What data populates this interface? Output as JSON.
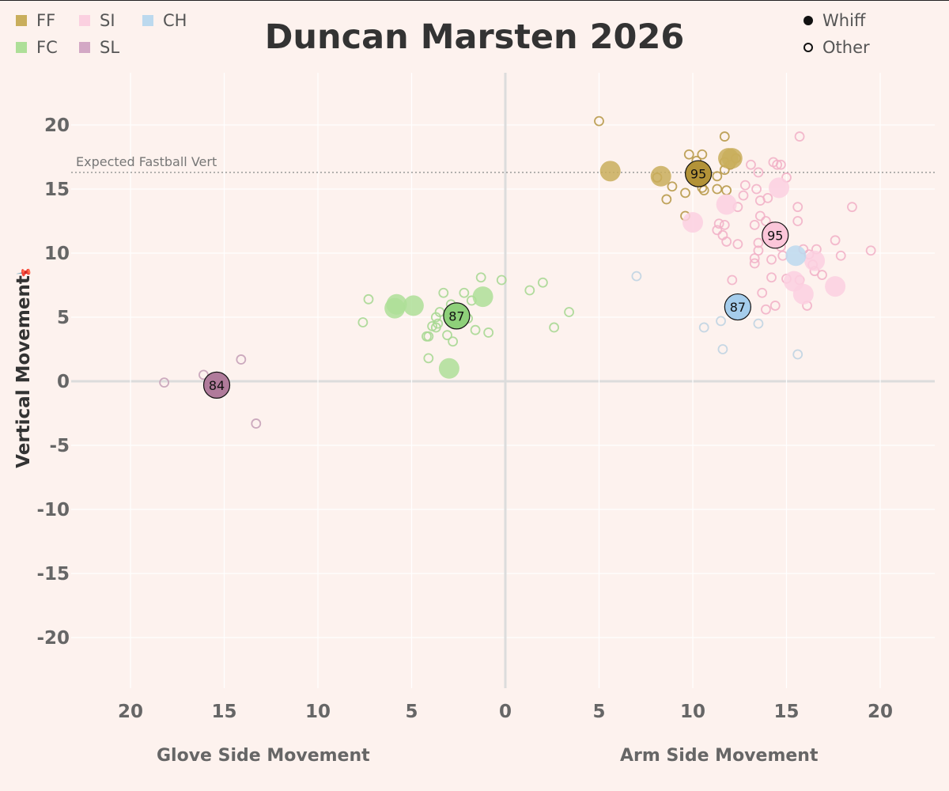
{
  "title": "Duncan Marsten 2026",
  "legend": {
    "pitch_types": [
      {
        "label": "FF",
        "color": "#c9ae5c"
      },
      {
        "label": "SI",
        "color": "#fbd0e0"
      },
      {
        "label": "CH",
        "color": "#bcd9ee"
      },
      {
        "label": "FC",
        "color": "#aedf98"
      },
      {
        "label": "SL",
        "color": "#d3a8c5"
      }
    ],
    "outcomes": [
      {
        "label": "Whiff",
        "style": "filled"
      },
      {
        "label": "Other",
        "style": "hollow"
      }
    ]
  },
  "axes": {
    "ylabel": "Vertical Movement",
    "xlabel_left": "Glove Side Movement",
    "xlabel_right": "Arm Side Movement",
    "reference_line_label": "Expected Fastball Vert"
  },
  "chart_data": {
    "type": "scatter",
    "x_ticks": [
      "20",
      "15",
      "10",
      "5",
      "0",
      "5",
      "10",
      "15",
      "20"
    ],
    "y_ticks": [
      20,
      15,
      10,
      5,
      0,
      -5,
      -10,
      -15,
      -20
    ],
    "xlim": [
      -23,
      23
    ],
    "ylim": [
      -24,
      24
    ],
    "grid": true,
    "x_note": "negative = glove side, positive = arm side (labels are absolute values)",
    "reference_line_y": 16.3,
    "legend_position": "top",
    "series": [
      {
        "name": "FF",
        "color": "#c9ae5c",
        "avg_color": "#b39338",
        "stroke": "#b89a4a",
        "average": {
          "x": 10.3,
          "y": 16.2,
          "label": "95"
        },
        "whiff": [
          [
            5.6,
            16.4
          ],
          [
            8.3,
            16.0
          ],
          [
            10.4,
            16.4
          ],
          [
            11.9,
            17.4
          ],
          [
            12.1,
            17.4
          ]
        ],
        "other": [
          [
            5.0,
            20.3
          ],
          [
            8.1,
            15.9
          ],
          [
            8.6,
            14.2
          ],
          [
            8.9,
            15.2
          ],
          [
            9.6,
            14.7
          ],
          [
            9.8,
            17.7
          ],
          [
            9.6,
            12.9
          ],
          [
            10.2,
            17.2
          ],
          [
            10.5,
            17.7
          ],
          [
            10.5,
            15.1
          ],
          [
            10.6,
            14.9
          ],
          [
            11.3,
            16.0
          ],
          [
            11.3,
            15.0
          ],
          [
            11.7,
            19.1
          ],
          [
            11.7,
            17.1
          ],
          [
            11.7,
            16.5
          ],
          [
            11.8,
            14.9
          ],
          [
            12.0,
            16.9
          ],
          [
            12.3,
            17.4
          ]
        ]
      },
      {
        "name": "SI",
        "color": "#fbd0e0",
        "avg_color": "#fbc6d9",
        "stroke": "#f2b3c8",
        "average": {
          "x": 14.4,
          "y": 11.4,
          "label": "95"
        },
        "whiff": [
          [
            10.0,
            12.4
          ],
          [
            11.8,
            13.8
          ],
          [
            14.6,
            15.1
          ],
          [
            15.4,
            7.8
          ],
          [
            15.9,
            6.8
          ],
          [
            16.5,
            9.4
          ],
          [
            17.6,
            7.4
          ]
        ],
        "other": [
          [
            11.3,
            11.8
          ],
          [
            11.4,
            12.3
          ],
          [
            11.6,
            11.4
          ],
          [
            11.7,
            12.2
          ],
          [
            11.8,
            10.9
          ],
          [
            12.1,
            7.9
          ],
          [
            12.4,
            10.7
          ],
          [
            12.4,
            13.6
          ],
          [
            12.7,
            14.5
          ],
          [
            12.8,
            15.3
          ],
          [
            13.1,
            16.9
          ],
          [
            13.3,
            12.2
          ],
          [
            13.3,
            9.2
          ],
          [
            13.3,
            9.6
          ],
          [
            13.4,
            15.0
          ],
          [
            13.5,
            16.3
          ],
          [
            13.5,
            10.2
          ],
          [
            13.5,
            10.8
          ],
          [
            13.6,
            14.1
          ],
          [
            13.6,
            12.9
          ],
          [
            13.7,
            6.9
          ],
          [
            13.9,
            12.5
          ],
          [
            13.9,
            5.6
          ],
          [
            14.0,
            14.3
          ],
          [
            14.2,
            8.1
          ],
          [
            14.2,
            9.5
          ],
          [
            14.2,
            12.1
          ],
          [
            14.3,
            17.1
          ],
          [
            14.4,
            5.9
          ],
          [
            14.5,
            16.9
          ],
          [
            14.7,
            16.9
          ],
          [
            14.7,
            10.5
          ],
          [
            14.8,
            9.8
          ],
          [
            15.0,
            15.9
          ],
          [
            15.0,
            8.0
          ],
          [
            15.7,
            19.1
          ],
          [
            15.6,
            13.6
          ],
          [
            15.6,
            12.5
          ],
          [
            15.7,
            7.9
          ],
          [
            15.9,
            10.3
          ],
          [
            16.1,
            5.9
          ],
          [
            16.2,
            9.9
          ],
          [
            16.4,
            9.1
          ],
          [
            16.5,
            8.6
          ],
          [
            16.6,
            10.3
          ],
          [
            16.9,
            8.3
          ],
          [
            17.6,
            11.0
          ],
          [
            17.9,
            9.8
          ],
          [
            18.5,
            13.6
          ],
          [
            19.5,
            10.2
          ]
        ]
      },
      {
        "name": "CH",
        "color": "#bcd9ee",
        "avg_color": "#a5cdec",
        "stroke": "#c0d4e2",
        "average": {
          "x": 12.4,
          "y": 5.8,
          "label": "87"
        },
        "whiff": [
          [
            15.5,
            9.8
          ]
        ],
        "other": [
          [
            7.0,
            8.2
          ],
          [
            10.6,
            4.2
          ],
          [
            11.5,
            4.7
          ],
          [
            11.6,
            2.5
          ],
          [
            12.6,
            6.4
          ],
          [
            13.5,
            4.5
          ],
          [
            15.6,
            2.1
          ]
        ]
      },
      {
        "name": "FC",
        "color": "#aedf98",
        "avg_color": "#8ed07a",
        "stroke": "#a9d894",
        "average": {
          "x": -2.6,
          "y": 5.1,
          "label": "87"
        },
        "whiff": [
          [
            -5.9,
            5.7
          ],
          [
            -5.8,
            6.0
          ],
          [
            -4.9,
            5.9
          ],
          [
            -3.0,
            1.0
          ],
          [
            -1.2,
            6.6
          ]
        ],
        "other": [
          [
            -7.6,
            4.6
          ],
          [
            -7.3,
            6.4
          ],
          [
            -4.2,
            3.5
          ],
          [
            -4.1,
            3.5
          ],
          [
            -4.1,
            1.8
          ],
          [
            -3.9,
            4.3
          ],
          [
            -3.7,
            4.2
          ],
          [
            -3.7,
            5.0
          ],
          [
            -3.6,
            4.5
          ],
          [
            -3.5,
            5.4
          ],
          [
            -3.3,
            6.9
          ],
          [
            -3.1,
            3.6
          ],
          [
            -2.9,
            6.0
          ],
          [
            -2.8,
            3.1
          ],
          [
            -2.2,
            6.9
          ],
          [
            -2.0,
            4.9
          ],
          [
            -1.8,
            6.3
          ],
          [
            -1.6,
            4.0
          ],
          [
            -1.3,
            8.1
          ],
          [
            -0.9,
            3.8
          ],
          [
            -0.2,
            7.9
          ],
          [
            1.3,
            7.1
          ],
          [
            2.0,
            7.7
          ],
          [
            2.6,
            4.2
          ],
          [
            3.4,
            5.4
          ]
        ]
      },
      {
        "name": "SL",
        "color": "#d3a8c5",
        "avg_color": "#b07b9b",
        "stroke": "#c6a2b8",
        "average": {
          "x": -15.4,
          "y": -0.3,
          "label": "84"
        },
        "whiff": [],
        "other": [
          [
            -18.2,
            -0.1
          ],
          [
            -16.1,
            0.5
          ],
          [
            -14.1,
            1.7
          ],
          [
            -13.3,
            -3.3
          ]
        ]
      }
    ]
  }
}
